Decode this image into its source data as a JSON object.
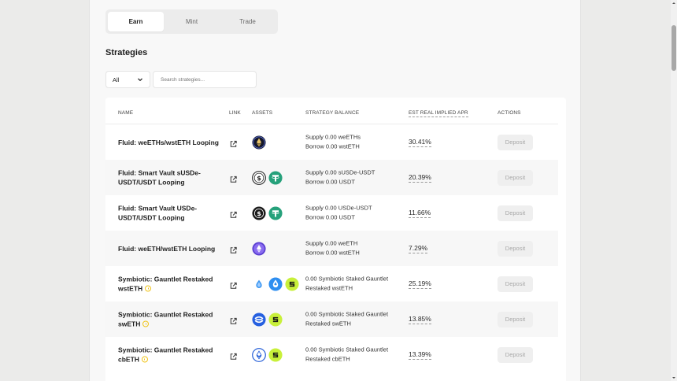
{
  "tabs": [
    {
      "label": "Earn",
      "active": true
    },
    {
      "label": "Mint",
      "active": false
    },
    {
      "label": "Trade",
      "active": false
    }
  ],
  "section_title": "Strategies",
  "filter": {
    "selected": "All"
  },
  "search": {
    "placeholder": "Search strategies..."
  },
  "table": {
    "headers": {
      "name": "NAME",
      "link": "LINK",
      "assets": "ASSETS",
      "balance": "STRATEGY BALANCE",
      "apr": "EST REAL IMPLIED APR",
      "actions": "ACTIONS"
    },
    "rows": [
      {
        "name": "Fluid: weETHs/wstETH Looping",
        "info": false,
        "assets": [
          "weeths"
        ],
        "balance": [
          "Supply 0.00 weETHs",
          "Borrow 0.00 wstETH"
        ],
        "apr": "30.41%",
        "action": "Deposit"
      },
      {
        "name": "Fluid: Smart Vault sUSDe-USDT/USDT Looping",
        "info": false,
        "assets": [
          "susde",
          "usdt"
        ],
        "balance": [
          "Supply 0.00 sUSDe-USDT",
          "Borrow 0.00 USDT"
        ],
        "apr": "20.39%",
        "action": "Deposit"
      },
      {
        "name": "Fluid: Smart Vault USDe-USDT/USDT Looping",
        "info": false,
        "assets": [
          "usde",
          "usdt"
        ],
        "balance": [
          "Supply 0.00 USDe-USDT",
          "Borrow 0.00 USDT"
        ],
        "apr": "11.66%",
        "action": "Deposit"
      },
      {
        "name": "Fluid: weETH/wstETH Looping",
        "info": false,
        "assets": [
          "weeth"
        ],
        "balance": [
          "Supply 0.00 weETH",
          "Borrow 0.00 wstETH"
        ],
        "apr": "7.29%",
        "action": "Deposit"
      },
      {
        "name": "Symbiotic: Gauntlet Restaked wstETH",
        "info": true,
        "assets": [
          "droplet",
          "wsteth",
          "symbiotic"
        ],
        "balance": [
          "0.00 Symbiotic Staked Gauntlet",
          "Restaked wstETH"
        ],
        "apr": "25.19%",
        "action": "Deposit"
      },
      {
        "name": "Symbiotic: Gauntlet Restaked swETH",
        "info": true,
        "assets": [
          "sweth",
          "symbiotic"
        ],
        "balance": [
          "0.00 Symbiotic Staked Gauntlet",
          "Restaked swETH"
        ],
        "apr": "13.85%",
        "action": "Deposit"
      },
      {
        "name": "Symbiotic: Gauntlet Restaked cbETH",
        "info": true,
        "assets": [
          "cbeth",
          "symbiotic"
        ],
        "balance": [
          "0.00 Symbiotic Staked Gauntlet",
          "Restaked cbETH"
        ],
        "apr": "13.39%",
        "action": "Deposit"
      }
    ]
  },
  "colors": {
    "usdt": "#26a17b",
    "symbiotic": "#c8f03a",
    "wsteth": "#2d8ef0",
    "sweth": "#2660e0",
    "cbeth": "#1e5ad6",
    "info": "#f0c419"
  }
}
